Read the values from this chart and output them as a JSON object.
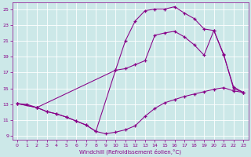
{
  "xlabel": "Windchill (Refroidissement éolien,°C)",
  "background_color": "#cce8e8",
  "line_color": "#880088",
  "xlim_min": -0.5,
  "xlim_max": 23.5,
  "ylim_min": 8.5,
  "ylim_max": 25.8,
  "xticks": [
    0,
    1,
    2,
    3,
    4,
    5,
    6,
    7,
    8,
    9,
    10,
    11,
    12,
    13,
    14,
    15,
    16,
    17,
    18,
    19,
    20,
    21,
    22,
    23
  ],
  "yticks": [
    9,
    11,
    13,
    15,
    17,
    19,
    21,
    23,
    25
  ],
  "line1_x": [
    0,
    1,
    2,
    3,
    4,
    5,
    6,
    7,
    8,
    9,
    10,
    11,
    12,
    13,
    14,
    15,
    16,
    17,
    18,
    19,
    20,
    21,
    22,
    23
  ],
  "line1_y": [
    13.1,
    13.0,
    12.6,
    12.1,
    11.8,
    11.4,
    10.9,
    10.4,
    9.6,
    9.3,
    9.5,
    9.8,
    10.3,
    11.5,
    12.5,
    13.2,
    13.6,
    14.0,
    14.3,
    14.6,
    14.9,
    15.1,
    14.7,
    14.5
  ],
  "line2_x": [
    0,
    2,
    3,
    4,
    5,
    6,
    7,
    8,
    10,
    11,
    12,
    13,
    14,
    15,
    16,
    17,
    18,
    19,
    20,
    21,
    22,
    23
  ],
  "line2_y": [
    13.1,
    12.6,
    12.1,
    11.8,
    11.4,
    10.9,
    10.4,
    9.6,
    17.3,
    21.0,
    23.5,
    24.8,
    25.0,
    25.0,
    25.3,
    24.5,
    23.8,
    22.5,
    22.3,
    19.2,
    15.2,
    14.5
  ],
  "line3_x": [
    0,
    2,
    10,
    11,
    12,
    13,
    14,
    15,
    16,
    17,
    18,
    19,
    20,
    21,
    22,
    23
  ],
  "line3_y": [
    13.1,
    12.6,
    17.3,
    17.5,
    18.0,
    18.5,
    21.7,
    22.0,
    22.2,
    21.5,
    20.5,
    19.2,
    22.3,
    19.3,
    15.0,
    14.5
  ]
}
